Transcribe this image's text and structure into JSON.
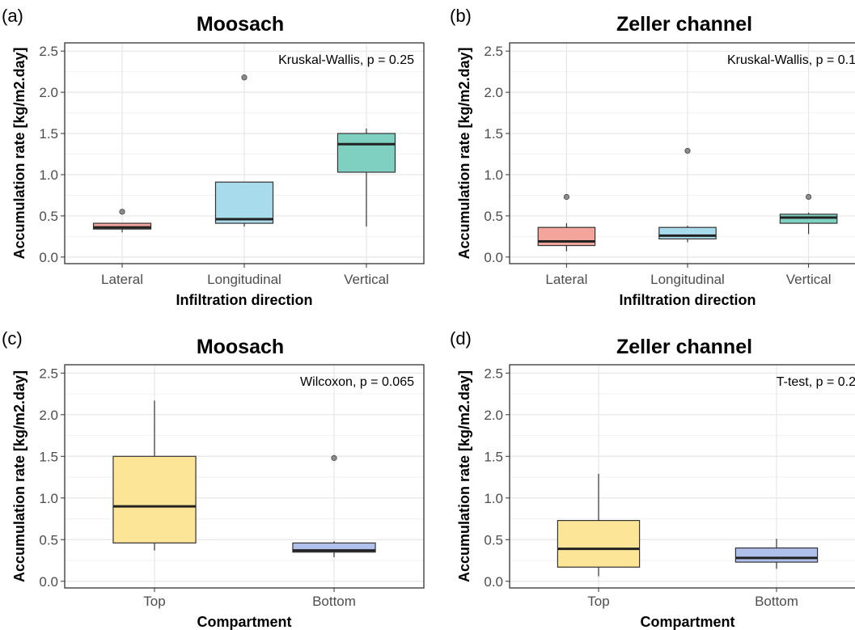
{
  "chart_data": [
    {
      "type": "box",
      "panel_label": "(a)",
      "title": "Moosach",
      "xlabel": "Infiltration direction",
      "ylabel": "Accumulation rate [kg/m2.day]",
      "ylim": [
        -0.08,
        2.6
      ],
      "yticks": [
        "0.0",
        "0.5",
        "1.0",
        "1.5",
        "2.0",
        "2.5"
      ],
      "grid": true,
      "annotation": "Kruskal-Wallis, p = 0.25",
      "categories": [
        "Lateral",
        "Longitudinal",
        "Vertical"
      ],
      "boxes": [
        {
          "category": "Lateral",
          "color": "#f4a59b",
          "whisker_low": 0.3,
          "q1": 0.34,
          "median": 0.36,
          "q3": 0.41,
          "whisker_high": 0.41,
          "outliers": [
            0.55
          ]
        },
        {
          "category": "Longitudinal",
          "color": "#a8dcec",
          "whisker_low": 0.37,
          "q1": 0.41,
          "median": 0.46,
          "q3": 0.91,
          "whisker_high": 0.91,
          "outliers": [
            2.18
          ]
        },
        {
          "category": "Vertical",
          "color": "#7fd0c0",
          "whisker_low": 0.37,
          "q1": 1.03,
          "median": 1.37,
          "q3": 1.5,
          "whisker_high": 1.56,
          "outliers": []
        }
      ]
    },
    {
      "type": "box",
      "panel_label": "(b)",
      "title": "Zeller channel",
      "xlabel": "Infiltration direction",
      "ylabel": "Accumulation rate [kg/m2.day]",
      "ylim": [
        -0.08,
        2.6
      ],
      "yticks": [
        "0.0",
        "0.5",
        "1.0",
        "1.5",
        "2.0",
        "2.5"
      ],
      "grid": true,
      "annotation": "Kruskal-Wallis, p = 0.1",
      "categories": [
        "Lateral",
        "Longitudinal",
        "Vertical"
      ],
      "boxes": [
        {
          "category": "Lateral",
          "color": "#f4a59b",
          "whisker_low": 0.07,
          "q1": 0.14,
          "median": 0.19,
          "q3": 0.36,
          "whisker_high": 0.41,
          "outliers": [
            0.73
          ]
        },
        {
          "category": "Longitudinal",
          "color": "#a8dcec",
          "whisker_low": 0.18,
          "q1": 0.22,
          "median": 0.26,
          "q3": 0.36,
          "whisker_high": 0.38,
          "outliers": [
            1.29
          ]
        },
        {
          "category": "Vertical",
          "color": "#7fd0c0",
          "whisker_low": 0.28,
          "q1": 0.41,
          "median": 0.48,
          "q3": 0.52,
          "whisker_high": 0.54,
          "outliers": [
            0.73
          ]
        }
      ]
    },
    {
      "type": "box",
      "panel_label": "(c)",
      "title": "Moosach",
      "xlabel": "Compartment",
      "ylabel": "Accumulation rate [kg/m2.day]",
      "ylim": [
        -0.08,
        2.6
      ],
      "yticks": [
        "0.0",
        "0.5",
        "1.0",
        "1.5",
        "2.0",
        "2.5"
      ],
      "grid": true,
      "annotation": "Wilcoxon, p = 0.065",
      "categories": [
        "Top",
        "Bottom"
      ],
      "boxes": [
        {
          "category": "Top",
          "color": "#fce597",
          "whisker_low": 0.37,
          "q1": 0.46,
          "median": 0.9,
          "q3": 1.5,
          "whisker_high": 2.17,
          "outliers": []
        },
        {
          "category": "Bottom",
          "color": "#aec0eb",
          "whisker_low": 0.29,
          "q1": 0.35,
          "median": 0.37,
          "q3": 0.46,
          "whisker_high": 0.48,
          "outliers": [
            1.48
          ]
        }
      ]
    },
    {
      "type": "box",
      "panel_label": "(d)",
      "title": "Zeller channel",
      "xlabel": "Compartment",
      "ylabel": "Accumulation rate [kg/m2.day]",
      "ylim": [
        -0.08,
        2.6
      ],
      "yticks": [
        "0.0",
        "0.5",
        "1.0",
        "1.5",
        "2.0",
        "2.5"
      ],
      "grid": true,
      "annotation": "T-test, p = 0.2",
      "categories": [
        "Top",
        "Bottom"
      ],
      "boxes": [
        {
          "category": "Top",
          "color": "#fce597",
          "whisker_low": 0.06,
          "q1": 0.17,
          "median": 0.39,
          "q3": 0.73,
          "whisker_high": 1.29,
          "outliers": []
        },
        {
          "category": "Bottom",
          "color": "#aec0eb",
          "whisker_low": 0.15,
          "q1": 0.23,
          "median": 0.28,
          "q3": 0.4,
          "whisker_high": 0.51,
          "outliers": []
        }
      ]
    }
  ]
}
